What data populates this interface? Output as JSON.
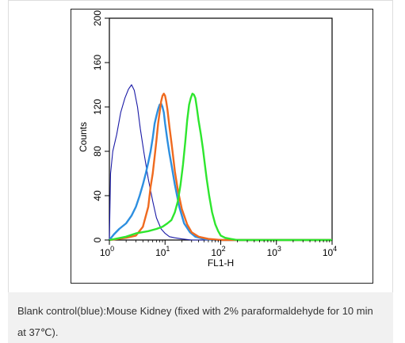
{
  "caption": "Blank control(blue):Mouse Kidney (fixed with 2% paraformaldehyde for 10 min at 37℃).",
  "chart_data": {
    "type": "line",
    "xlabel": "FL1-H",
    "ylabel": "Counts",
    "x_scale": "log",
    "xlim": [
      1,
      10000
    ],
    "ylim": [
      0,
      200
    ],
    "x_ticks": [
      {
        "value": 1,
        "base": "10",
        "exp": "0"
      },
      {
        "value": 10,
        "base": "10",
        "exp": "1"
      },
      {
        "value": 100,
        "base": "10",
        "exp": "2"
      },
      {
        "value": 1000,
        "base": "10",
        "exp": "3"
      },
      {
        "value": 10000,
        "base": "10",
        "exp": "4"
      }
    ],
    "y_ticks": [
      "0",
      "40",
      "80",
      "120",
      "160",
      "200"
    ],
    "grid": false,
    "colors": {
      "navy": "#1a1aa6",
      "blue": "#2d8fe0",
      "orange": "#ef6a1f",
      "green": "#2ee62e"
    },
    "series": [
      {
        "color": "#1a1aa6",
        "points": [
          [
            1,
            0
          ],
          [
            1.05,
            60
          ],
          [
            1.15,
            80
          ],
          [
            1.35,
            95
          ],
          [
            1.6,
            115
          ],
          [
            1.9,
            128
          ],
          [
            2.2,
            136
          ],
          [
            2.5,
            140
          ],
          [
            2.8,
            135
          ],
          [
            3.2,
            120
          ],
          [
            3.6,
            100
          ],
          [
            4.2,
            78
          ],
          [
            5,
            55
          ],
          [
            6,
            35
          ],
          [
            7,
            20
          ],
          [
            8.5,
            10
          ],
          [
            10,
            6
          ],
          [
            12,
            3
          ],
          [
            15,
            2
          ],
          [
            20,
            1
          ],
          [
            30,
            0
          ],
          [
            10000,
            0
          ]
        ]
      },
      {
        "color": "#2d8fe0",
        "points": [
          [
            1,
            0
          ],
          [
            1.2,
            5
          ],
          [
            1.5,
            10
          ],
          [
            2,
            15
          ],
          [
            2.5,
            22
          ],
          [
            3,
            30
          ],
          [
            3.5,
            40
          ],
          [
            4,
            50
          ],
          [
            4.5,
            60
          ],
          [
            5,
            70
          ],
          [
            5.5,
            80
          ],
          [
            6,
            92
          ],
          [
            6.5,
            105
          ],
          [
            7,
            112
          ],
          [
            7.5,
            118
          ],
          [
            8,
            122
          ],
          [
            8.5,
            123
          ],
          [
            9,
            120
          ],
          [
            9.5,
            115
          ],
          [
            10,
            105
          ],
          [
            11,
            90
          ],
          [
            12,
            78
          ],
          [
            13,
            68
          ],
          [
            15,
            50
          ],
          [
            18,
            30
          ],
          [
            22,
            15
          ],
          [
            28,
            7
          ],
          [
            35,
            3
          ],
          [
            50,
            1
          ],
          [
            80,
            0
          ],
          [
            10000,
            0
          ]
        ]
      },
      {
        "color": "#ef6a1f",
        "points": [
          [
            1,
            0
          ],
          [
            2,
            2
          ],
          [
            3,
            4
          ],
          [
            4,
            12
          ],
          [
            5,
            30
          ],
          [
            5.5,
            48
          ],
          [
            6,
            60
          ],
          [
            6.5,
            75
          ],
          [
            7,
            90
          ],
          [
            7.5,
            105
          ],
          [
            8,
            115
          ],
          [
            8.5,
            125
          ],
          [
            9,
            130
          ],
          [
            9.5,
            132
          ],
          [
            10,
            130
          ],
          [
            10.5,
            125
          ],
          [
            11,
            118
          ],
          [
            12,
            102
          ],
          [
            13,
            88
          ],
          [
            14,
            75
          ],
          [
            15,
            62
          ],
          [
            17,
            45
          ],
          [
            20,
            28
          ],
          [
            25,
            14
          ],
          [
            30,
            7
          ],
          [
            40,
            3
          ],
          [
            60,
            1
          ],
          [
            100,
            0
          ],
          [
            10000,
            0
          ]
        ]
      },
      {
        "color": "#2ee62e",
        "points": [
          [
            1,
            0
          ],
          [
            2,
            3
          ],
          [
            3,
            6
          ],
          [
            5,
            8
          ],
          [
            7,
            10
          ],
          [
            9,
            12
          ],
          [
            11,
            15
          ],
          [
            13,
            18
          ],
          [
            15,
            25
          ],
          [
            17,
            35
          ],
          [
            19,
            50
          ],
          [
            21,
            68
          ],
          [
            23,
            88
          ],
          [
            25,
            108
          ],
          [
            27,
            122
          ],
          [
            29,
            128
          ],
          [
            31,
            132
          ],
          [
            33,
            131
          ],
          [
            35,
            128
          ],
          [
            37,
            120
          ],
          [
            40,
            108
          ],
          [
            44,
            95
          ],
          [
            48,
            82
          ],
          [
            52,
            68
          ],
          [
            56,
            55
          ],
          [
            62,
            40
          ],
          [
            70,
            25
          ],
          [
            80,
            14
          ],
          [
            90,
            8
          ],
          [
            100,
            4
          ],
          [
            120,
            2
          ],
          [
            150,
            1
          ],
          [
            200,
            0
          ],
          [
            10000,
            0
          ]
        ]
      }
    ]
  }
}
